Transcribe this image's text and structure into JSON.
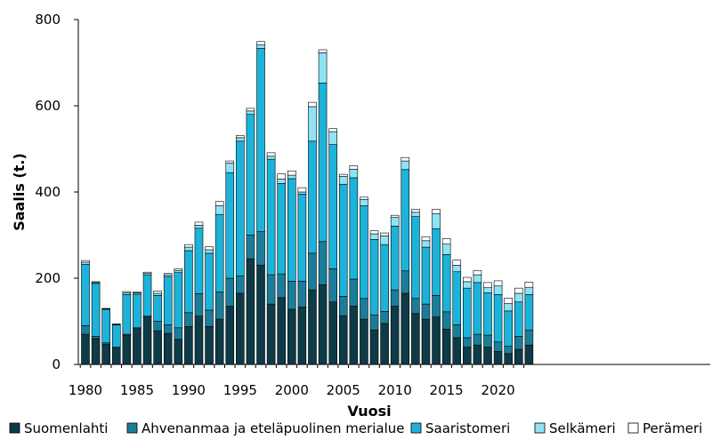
{
  "chart_data": {
    "type": "bar",
    "stacked": true,
    "title": "",
    "xlabel": "Vuosi",
    "ylabel": "Saalis (t.)",
    "ylim": [
      0,
      800
    ],
    "yticks": [
      0,
      200,
      400,
      600,
      800
    ],
    "xticks": [
      1980,
      1985,
      1990,
      1995,
      2000,
      2005,
      2010,
      2015,
      2020
    ],
    "grid": false,
    "legend_position": "bottom",
    "categories": [
      1980,
      1981,
      1982,
      1983,
      1984,
      1985,
      1986,
      1987,
      1988,
      1989,
      1990,
      1991,
      1992,
      1993,
      1994,
      1995,
      1996,
      1997,
      1998,
      1999,
      2000,
      2001,
      2002,
      2003,
      2004,
      2005,
      2006,
      2007,
      2008,
      2009,
      2010,
      2011,
      2012,
      2013,
      2014,
      2015,
      2016,
      2017,
      2018,
      2019,
      2020,
      2021,
      2022,
      2023
    ],
    "series": [
      {
        "name": "Suomenlahti",
        "color": "#0d3b47",
        "values": [
          70,
          60,
          47,
          38,
          68,
          83,
          110,
          78,
          72,
          58,
          88,
          112,
          88,
          105,
          135,
          165,
          245,
          230,
          140,
          155,
          128,
          133,
          173,
          185,
          145,
          113,
          135,
          105,
          80,
          95,
          135,
          165,
          118,
          105,
          110,
          82,
          62,
          40,
          45,
          40,
          30,
          25,
          35,
          45
        ]
      },
      {
        "name": "Ahvenanmaa ja eteläpuolinen merialue",
        "color": "#1b7d99",
        "values": [
          20,
          5,
          3,
          2,
          2,
          2,
          2,
          22,
          20,
          27,
          32,
          52,
          38,
          63,
          65,
          40,
          55,
          78,
          68,
          55,
          65,
          60,
          85,
          100,
          77,
          45,
          63,
          48,
          35,
          28,
          38,
          52,
          35,
          35,
          50,
          40,
          30,
          22,
          25,
          28,
          22,
          17,
          30,
          35
        ]
      },
      {
        "name": "Saaristomeri",
        "color": "#1cb3db",
        "values": [
          142,
          123,
          78,
          52,
          92,
          78,
          96,
          60,
          112,
          128,
          144,
          152,
          132,
          180,
          245,
          313,
          280,
          425,
          268,
          210,
          238,
          202,
          260,
          368,
          288,
          260,
          235,
          215,
          175,
          155,
          148,
          235,
          190,
          132,
          155,
          133,
          123,
          115,
          120,
          98,
          110,
          82,
          80,
          82
        ]
      },
      {
        "name": "Selkämeri",
        "color": "#8fe3f5",
        "values": [
          5,
          2,
          1,
          1,
          4,
          3,
          3,
          5,
          4,
          5,
          8,
          7,
          8,
          20,
          22,
          8,
          8,
          8,
          7,
          10,
          8,
          5,
          80,
          70,
          30,
          18,
          20,
          15,
          13,
          20,
          20,
          20,
          10,
          15,
          35,
          25,
          15,
          15,
          18,
          12,
          20,
          17,
          20,
          17
        ]
      },
      {
        "name": "Perämeri",
        "color": "#ffffff",
        "values": [
          4,
          2,
          1,
          1,
          3,
          2,
          3,
          5,
          3,
          4,
          6,
          7,
          7,
          10,
          5,
          5,
          6,
          8,
          8,
          12,
          10,
          10,
          10,
          7,
          7,
          5,
          8,
          5,
          7,
          7,
          5,
          8,
          7,
          9,
          10,
          12,
          12,
          10,
          10,
          12,
          12,
          13,
          12,
          12
        ]
      }
    ]
  }
}
